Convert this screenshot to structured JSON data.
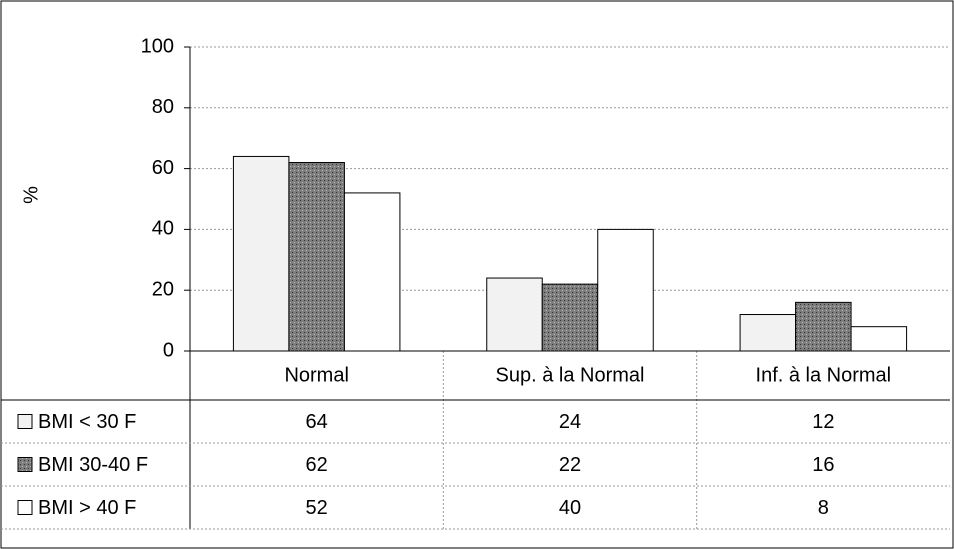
{
  "chart_data": {
    "type": "bar",
    "y_label": "%",
    "categories": [
      "Normal",
      "Sup. à la Normal",
      "Inf. à la Normal"
    ],
    "series": [
      {
        "name": "BMI < 30 F",
        "color": "#f2f2f2",
        "values": [
          64,
          24,
          12
        ]
      },
      {
        "name": "BMI 30-40 F",
        "color": "#7d7d7d",
        "values": [
          62,
          22,
          16
        ]
      },
      {
        "name": "BMI > 40 F",
        "color": "#ffffff",
        "values": [
          52,
          40,
          8
        ]
      }
    ],
    "ylim": [
      0,
      100
    ],
    "yticks": [
      0,
      20,
      40,
      60,
      80,
      100
    ],
    "grid": true,
    "data_table": true
  }
}
